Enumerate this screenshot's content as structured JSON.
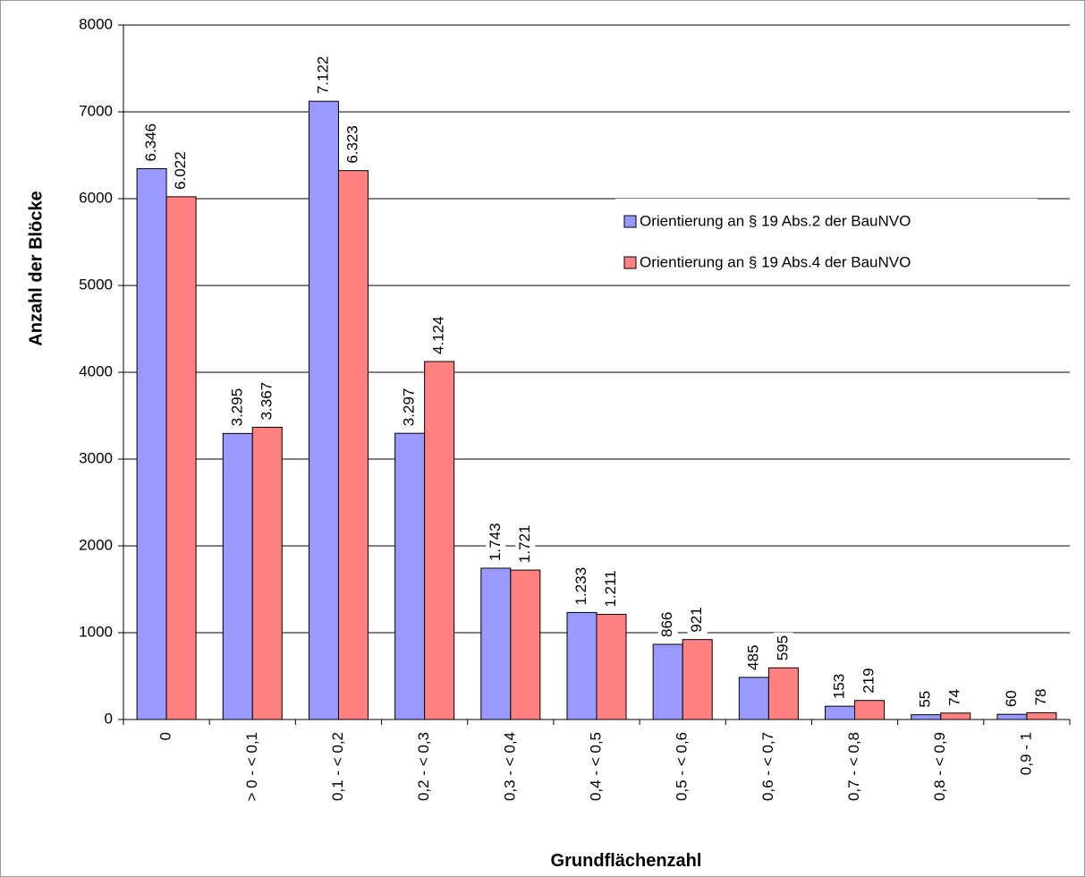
{
  "chart_data": {
    "type": "bar",
    "x_label": "Grundflächenzahl",
    "y_label": "Anzahl der Blöcke",
    "categories": [
      "0",
      "> 0 - < 0,1",
      "0,1 - < 0,2",
      "0,2 - < 0,3",
      "0,3 - < 0,4",
      "0,4 - < 0,5",
      "0,5 - < 0,6",
      "0,6 - < 0,7",
      "0,7 - < 0,8",
      "0,8 - < 0,9",
      "0,9 - 1"
    ],
    "series": [
      {
        "name": "Orientierung an § 19 Abs.2 der BauNVO",
        "color": "#9999ff",
        "values": [
          6346,
          3295,
          7122,
          3297,
          1743,
          1233,
          866,
          485,
          153,
          55,
          60
        ],
        "value_labels": [
          "6.346",
          "3.295",
          "7.122",
          "3.297",
          "1.743",
          "1.233",
          "866",
          "485",
          "153",
          "55",
          "60"
        ]
      },
      {
        "name": "Orientierung an § 19 Abs.4 der BauNVO",
        "color": "#ff8080",
        "values": [
          6022,
          3367,
          6323,
          4124,
          1721,
          1211,
          921,
          595,
          219,
          74,
          78
        ],
        "value_labels": [
          "6.022",
          "3.367",
          "6.323",
          "4.124",
          "1.721",
          "1.211",
          "921",
          "595",
          "219",
          "74",
          "78"
        ]
      }
    ],
    "ylim": [
      0,
      8000
    ],
    "yticks": [
      0,
      1000,
      2000,
      3000,
      4000,
      5000,
      6000,
      7000,
      8000
    ],
    "grid": true,
    "legend": "right"
  }
}
